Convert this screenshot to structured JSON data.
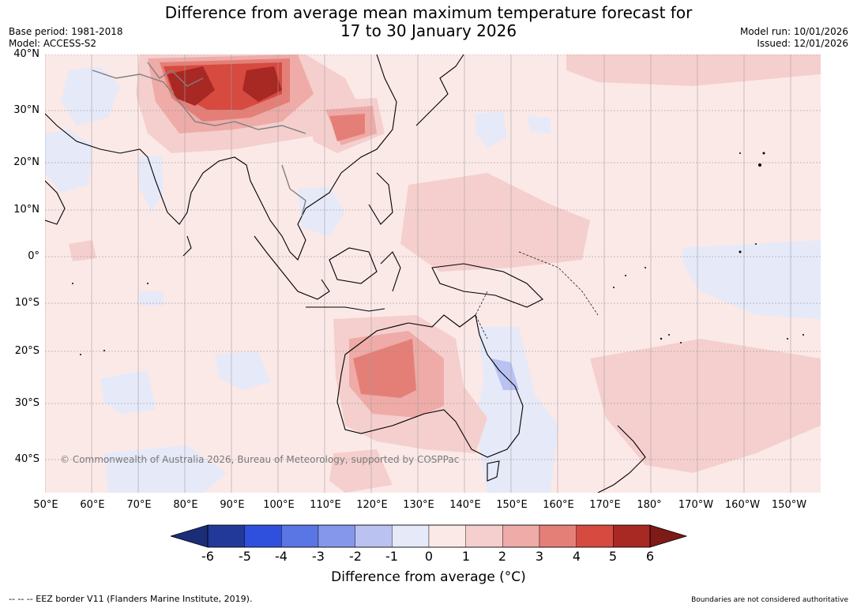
{
  "title_line1": "Difference from average mean maximum temperature forecast for",
  "title_line2": "17 to 30 January 2026",
  "meta_left": {
    "base_period": "Base period: 1981-2018",
    "model": "Model: ACCESS-S2"
  },
  "meta_right": {
    "model_run": "Model run: 10/01/2026",
    "issued": "Issued: 12/01/2026"
  },
  "lat_labels": [
    "40°N",
    "30°N",
    "20°N",
    "10°N",
    "0°",
    "10°S",
    "20°S",
    "30°S",
    "40°S"
  ],
  "lon_labels": [
    "50°E",
    "60°E",
    "70°E",
    "80°E",
    "90°E",
    "100°E",
    "110°E",
    "120°E",
    "130°E",
    "140°E",
    "150°E",
    "160°E",
    "170°E",
    "180°",
    "170°W",
    "160°W",
    "150°W"
  ],
  "copyright": "© Commonwealth of Australia 2026, Bureau of Meteorology, supported by COSPPac",
  "colorbar": {
    "ticks": [
      "-6",
      "-5",
      "-4",
      "-3",
      "-2",
      "-1",
      "0",
      "1",
      "2",
      "3",
      "4",
      "5",
      "6"
    ],
    "colors": [
      "#23399a",
      "#2e50dc",
      "#5a75e4",
      "#8597eb",
      "#b9c2f1",
      "#e6e9f8",
      "#fbe9e8",
      "#f5cfcd",
      "#eeaba7",
      "#e47f78",
      "#d64a40",
      "#a82823"
    ],
    "under_color": "#1c2d78",
    "over_color": "#7e1a17",
    "label": "Difference from average (°C)"
  },
  "footer_left": "-- -- -- EEZ border V11 (Flanders Marine Institute, 2019).",
  "footer_right": "Boundaries are not considered authoritative"
}
